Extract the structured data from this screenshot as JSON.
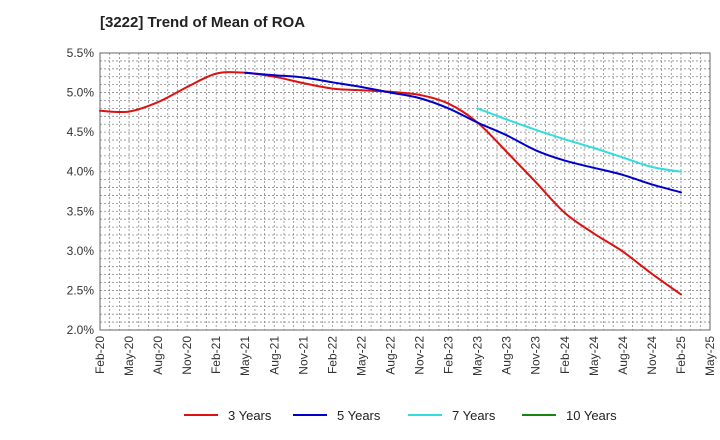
{
  "chart_data": {
    "type": "line",
    "title": "[3222]  Trend of Mean of ROA",
    "xlabel": "",
    "ylabel": "",
    "categories": [
      "Feb-20",
      "May-20",
      "Aug-20",
      "Nov-20",
      "Feb-21",
      "May-21",
      "Aug-21",
      "Nov-21",
      "Feb-22",
      "May-22",
      "Aug-22",
      "Nov-22",
      "Feb-23",
      "May-23",
      "Aug-23",
      "Nov-23",
      "Feb-24",
      "May-24",
      "Aug-24",
      "Nov-24",
      "Feb-25",
      "May-25"
    ],
    "y_ticks": [
      "2.0%",
      "2.5%",
      "3.0%",
      "3.5%",
      "4.0%",
      "4.5%",
      "5.0%",
      "5.5%"
    ],
    "ylim": [
      2.0,
      5.5
    ],
    "grid": true,
    "legend_position": "bottom",
    "series": [
      {
        "name": "3 Years",
        "color": "#dd1111",
        "values": [
          4.77,
          4.76,
          4.88,
          5.07,
          5.24,
          5.25,
          5.2,
          5.12,
          5.05,
          5.03,
          5.01,
          4.97,
          4.86,
          4.62,
          4.25,
          3.87,
          3.48,
          3.22,
          2.99,
          2.71,
          2.45,
          null
        ]
      },
      {
        "name": "5 Years",
        "color": "#0000cc",
        "values": [
          null,
          null,
          null,
          null,
          null,
          5.25,
          5.22,
          5.19,
          5.13,
          5.07,
          5.0,
          4.93,
          4.8,
          4.62,
          4.46,
          4.27,
          4.14,
          4.05,
          3.96,
          3.84,
          3.74,
          null
        ]
      },
      {
        "name": "7 Years",
        "color": "#33dddd",
        "values": [
          null,
          null,
          null,
          null,
          null,
          null,
          null,
          null,
          null,
          null,
          null,
          null,
          null,
          4.8,
          4.66,
          4.53,
          4.41,
          4.3,
          4.18,
          4.06,
          4.0,
          null
        ]
      },
      {
        "name": "10 Years",
        "color": "#118811",
        "values": [
          null,
          null,
          null,
          null,
          null,
          null,
          null,
          null,
          null,
          null,
          null,
          null,
          null,
          null,
          null,
          null,
          null,
          null,
          null,
          null,
          null,
          null
        ]
      }
    ]
  }
}
